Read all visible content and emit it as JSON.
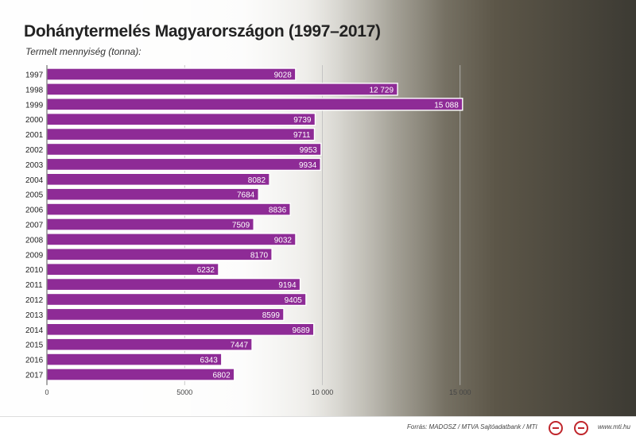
{
  "title": "Dohánytermelés Magyarországon (1997–2017)",
  "subtitle": "Termelt mennyiség (tonna):",
  "source": "Forrás: MADOSZ / MTVA Sajtóadatbank / MTI",
  "site": "www.mti.hu",
  "colors": {
    "bar": "#8e2b96"
  },
  "chart_data": {
    "type": "bar",
    "orientation": "horizontal",
    "title": "Dohánytermelés Magyarországon (1997–2017)",
    "subtitle": "Termelt mennyiség (tonna):",
    "categories": [
      "1997",
      "1998",
      "1999",
      "2000",
      "2001",
      "2002",
      "2003",
      "2004",
      "2005",
      "2006",
      "2007",
      "2008",
      "2009",
      "2010",
      "2011",
      "2012",
      "2013",
      "2014",
      "2015",
      "2016",
      "2017"
    ],
    "values": [
      9028,
      12729,
      15088,
      9739,
      9711,
      9953,
      9934,
      8082,
      7684,
      8836,
      7509,
      9032,
      8170,
      6232,
      9194,
      9405,
      8599,
      9689,
      7447,
      6343,
      6802
    ],
    "value_labels": [
      "9028",
      "12 729",
      "15 088",
      "9739",
      "9711",
      "9953",
      "9934",
      "8082",
      "7684",
      "8836",
      "7509",
      "9032",
      "8170",
      "6232",
      "9194",
      "9405",
      "8599",
      "9689",
      "7447",
      "6343",
      "6802"
    ],
    "xticks": [
      0,
      5000,
      10000,
      15000
    ],
    "xtick_labels": [
      "0",
      "5000",
      "10 000",
      "15 000"
    ],
    "xlim": [
      0,
      20500
    ],
    "grid": true
  }
}
